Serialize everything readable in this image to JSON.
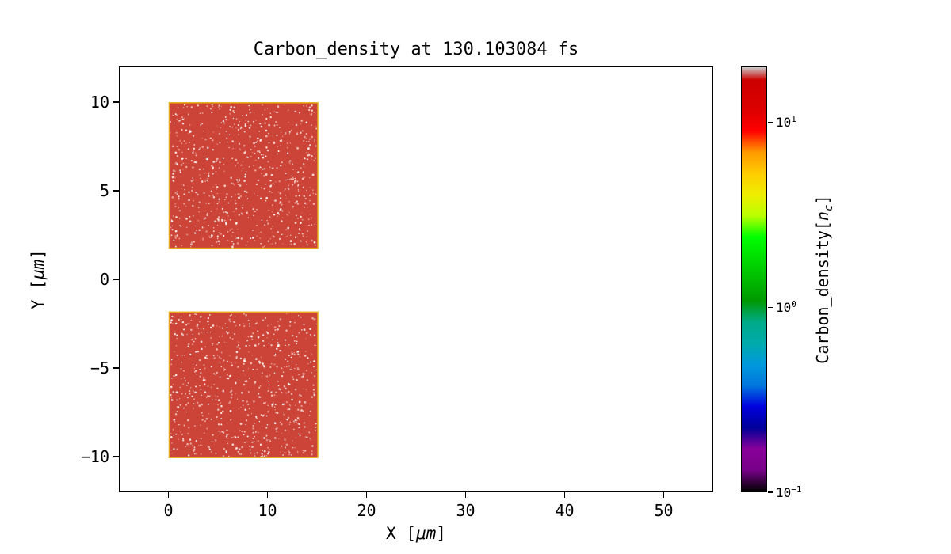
{
  "chart_data": {
    "type": "heatmap",
    "title": "Carbon_density at 130.103084 fs",
    "time_fs": 130.103084,
    "xlabel": {
      "prefix": "X [",
      "unit": "μm",
      "suffix": "]"
    },
    "ylabel": {
      "prefix": "Y [",
      "unit": "μm",
      "suffix": "]"
    },
    "xlim": [
      -5,
      55
    ],
    "ylim": [
      -12,
      12
    ],
    "grid": false,
    "x_ticks": [
      {
        "value": 0,
        "label": "0"
      },
      {
        "value": 10,
        "label": "10"
      },
      {
        "value": 20,
        "label": "20"
      },
      {
        "value": 30,
        "label": "30"
      },
      {
        "value": 40,
        "label": "40"
      },
      {
        "value": 50,
        "label": "50"
      }
    ],
    "y_ticks": [
      {
        "value": 10,
        "label": "10"
      },
      {
        "value": 5,
        "label": "5"
      },
      {
        "value": 0,
        "label": "0"
      },
      {
        "value": -5,
        "label": "−5"
      },
      {
        "value": -10,
        "label": "−10"
      }
    ],
    "blocks": [
      {
        "x0": 0,
        "x1": 15,
        "y0": 1.8,
        "y1": 10,
        "value_nc": 10
      },
      {
        "x0": 0,
        "x1": 15,
        "y0": -10,
        "y1": -1.8,
        "value_nc": 10
      }
    ],
    "block_fill": "#cc4437",
    "block_edge": "#e6a817",
    "speckle_color": "#ffffff",
    "background": "#ffffff",
    "colorbar": {
      "label_prefix": "Carbon_density[",
      "label_var": "n",
      "label_sub": "c",
      "label_suffix": "]",
      "scale": "log",
      "range": [
        0.1,
        20
      ],
      "ticks": [
        {
          "value": 10,
          "base": "10",
          "exp": "1"
        },
        {
          "value": 1,
          "base": "10",
          "exp": "0"
        },
        {
          "value": 0.1,
          "base": "10",
          "exp": "−1"
        }
      ],
      "colormap": "nipy_spectral",
      "gradient_stops": [
        {
          "pos": 0,
          "color": "#000000"
        },
        {
          "pos": 5,
          "color": "#770088"
        },
        {
          "pos": 10,
          "color": "#880099"
        },
        {
          "pos": 15,
          "color": "#000099"
        },
        {
          "pos": 20,
          "color": "#0000dd"
        },
        {
          "pos": 25,
          "color": "#0077dd"
        },
        {
          "pos": 30,
          "color": "#0099dd"
        },
        {
          "pos": 35,
          "color": "#00aaaa"
        },
        {
          "pos": 40,
          "color": "#00aa88"
        },
        {
          "pos": 45,
          "color": "#009900"
        },
        {
          "pos": 50,
          "color": "#00bb00"
        },
        {
          "pos": 55,
          "color": "#00dd00"
        },
        {
          "pos": 60,
          "color": "#00ff00"
        },
        {
          "pos": 65,
          "color": "#bbff00"
        },
        {
          "pos": 70,
          "color": "#eeee00"
        },
        {
          "pos": 75,
          "color": "#ffcc00"
        },
        {
          "pos": 80,
          "color": "#ff9900"
        },
        {
          "pos": 85,
          "color": "#ff0000"
        },
        {
          "pos": 90,
          "color": "#dd0000"
        },
        {
          "pos": 97,
          "color": "#cc0000"
        },
        {
          "pos": 100,
          "color": "#cccccc"
        }
      ]
    }
  }
}
